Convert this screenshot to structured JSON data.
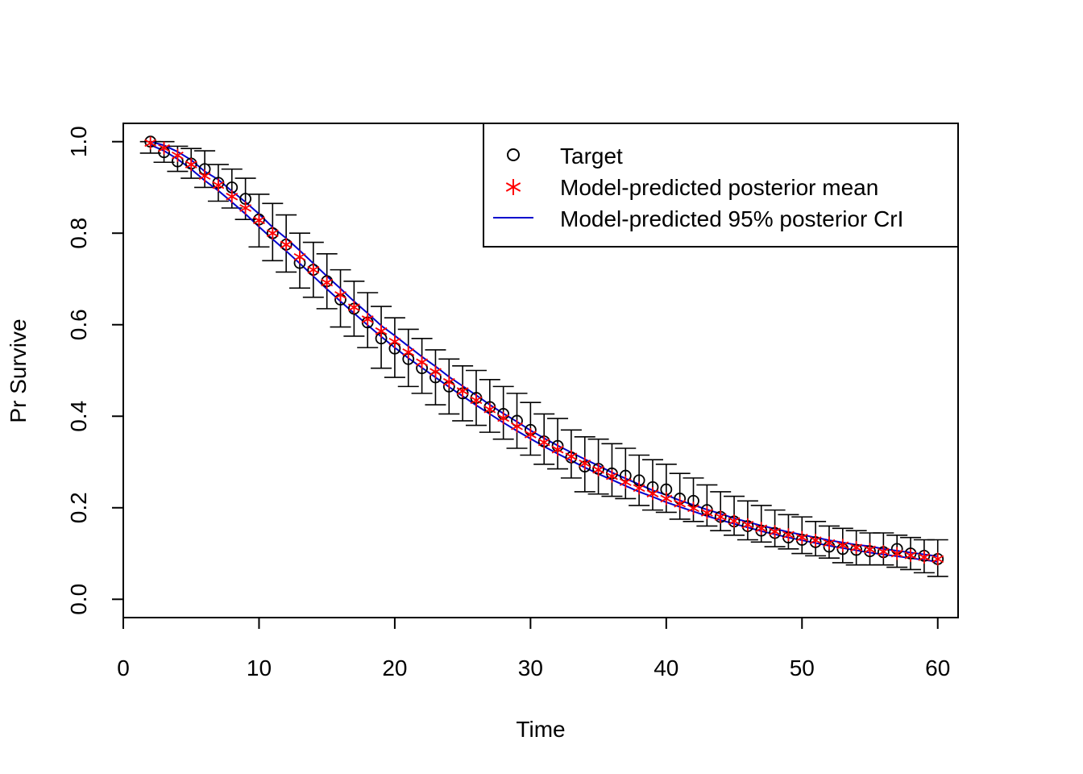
{
  "chart_data": {
    "type": "scatter",
    "title": "",
    "xlabel": "Time",
    "ylabel": "Pr Survive",
    "xlim": [
      0,
      61.5
    ],
    "ylim": [
      -0.04,
      1.04
    ],
    "x_ticks": [
      "0",
      "10",
      "20",
      "30",
      "40",
      "50",
      "60"
    ],
    "y_ticks": [
      "0.0",
      "0.2",
      "0.4",
      "0.6",
      "0.8",
      "1.0"
    ],
    "grid": false,
    "legend_position": "top-right",
    "legend": {
      "target": "Target",
      "mean": "Model-predicted posterior mean",
      "cri": "Model-predicted 95% posterior CrI"
    },
    "colors": {
      "target": "#000000",
      "mean": "#ff0000",
      "cri": "#0000cd"
    },
    "x": [
      2,
      3,
      4,
      5,
      6,
      7,
      8,
      9,
      10,
      11,
      12,
      13,
      14,
      15,
      16,
      17,
      18,
      19,
      20,
      21,
      22,
      23,
      24,
      25,
      26,
      27,
      28,
      29,
      30,
      31,
      32,
      33,
      34,
      35,
      36,
      37,
      38,
      39,
      40,
      41,
      42,
      43,
      44,
      45,
      46,
      47,
      48,
      49,
      50,
      51,
      52,
      53,
      54,
      55,
      56,
      57,
      58,
      59,
      60
    ],
    "series": [
      {
        "name": "Target",
        "values": [
          1.0,
          0.977,
          0.957,
          0.952,
          0.94,
          0.91,
          0.9,
          0.875,
          0.83,
          0.8,
          0.775,
          0.735,
          0.72,
          0.695,
          0.655,
          0.635,
          0.605,
          0.57,
          0.548,
          0.525,
          0.505,
          0.485,
          0.465,
          0.45,
          0.44,
          0.42,
          0.405,
          0.39,
          0.37,
          0.345,
          0.335,
          0.31,
          0.29,
          0.285,
          0.275,
          0.27,
          0.26,
          0.245,
          0.24,
          0.22,
          0.215,
          0.195,
          0.18,
          0.17,
          0.16,
          0.15,
          0.145,
          0.135,
          0.13,
          0.125,
          0.115,
          0.11,
          0.108,
          0.105,
          0.103,
          0.11,
          0.1,
          0.095,
          0.088
        ],
        "error_low": [
          0.975,
          0.955,
          0.935,
          0.92,
          0.9,
          0.87,
          0.855,
          0.83,
          0.77,
          0.74,
          0.715,
          0.68,
          0.66,
          0.635,
          0.595,
          0.575,
          0.55,
          0.505,
          0.485,
          0.465,
          0.45,
          0.425,
          0.405,
          0.39,
          0.38,
          0.365,
          0.35,
          0.33,
          0.315,
          0.295,
          0.285,
          0.265,
          0.235,
          0.23,
          0.225,
          0.22,
          0.205,
          0.195,
          0.19,
          0.175,
          0.17,
          0.16,
          0.15,
          0.14,
          0.13,
          0.125,
          0.115,
          0.11,
          0.1,
          0.095,
          0.09,
          0.08,
          0.075,
          0.075,
          0.075,
          0.07,
          0.065,
          0.058,
          0.05
        ],
        "error_high": [
          1.0,
          1.0,
          0.99,
          0.985,
          0.98,
          0.95,
          0.94,
          0.92,
          0.885,
          0.865,
          0.84,
          0.8,
          0.78,
          0.755,
          0.72,
          0.695,
          0.67,
          0.64,
          0.615,
          0.59,
          0.57,
          0.545,
          0.525,
          0.51,
          0.5,
          0.48,
          0.465,
          0.45,
          0.43,
          0.405,
          0.395,
          0.37,
          0.355,
          0.35,
          0.34,
          0.33,
          0.315,
          0.305,
          0.295,
          0.275,
          0.265,
          0.25,
          0.235,
          0.225,
          0.215,
          0.205,
          0.195,
          0.185,
          0.18,
          0.17,
          0.16,
          0.155,
          0.15,
          0.145,
          0.145,
          0.14,
          0.135,
          0.13,
          0.13
        ]
      },
      {
        "name": "Model-predicted posterior mean",
        "values": [
          0.997,
          0.986,
          0.97,
          0.95,
          0.925,
          0.905,
          0.88,
          0.855,
          0.828,
          0.8,
          0.775,
          0.748,
          0.72,
          0.692,
          0.665,
          0.638,
          0.612,
          0.586,
          0.563,
          0.54,
          0.518,
          0.497,
          0.475,
          0.455,
          0.435,
          0.415,
          0.396,
          0.378,
          0.36,
          0.343,
          0.327,
          0.312,
          0.297,
          0.283,
          0.269,
          0.256,
          0.243,
          0.231,
          0.22,
          0.209,
          0.199,
          0.189,
          0.18,
          0.171,
          0.163,
          0.155,
          0.148,
          0.141,
          0.135,
          0.129,
          0.123,
          0.118,
          0.113,
          0.109,
          0.104,
          0.1,
          0.096,
          0.092,
          0.088
        ]
      },
      {
        "name": "Model-predicted 95% posterior CrI",
        "lower": [
          0.993,
          0.98,
          0.962,
          0.94,
          0.915,
          0.893,
          0.868,
          0.842,
          0.814,
          0.787,
          0.761,
          0.734,
          0.706,
          0.678,
          0.651,
          0.625,
          0.599,
          0.574,
          0.55,
          0.527,
          0.506,
          0.485,
          0.464,
          0.444,
          0.424,
          0.405,
          0.386,
          0.368,
          0.351,
          0.334,
          0.318,
          0.303,
          0.288,
          0.274,
          0.261,
          0.248,
          0.235,
          0.224,
          0.212,
          0.202,
          0.192,
          0.182,
          0.173,
          0.165,
          0.157,
          0.149,
          0.142,
          0.135,
          0.129,
          0.123,
          0.117,
          0.112,
          0.107,
          0.102,
          0.098,
          0.094,
          0.09,
          0.086,
          0.082
        ],
        "upper": [
          1.0,
          0.992,
          0.978,
          0.96,
          0.935,
          0.917,
          0.892,
          0.868,
          0.842,
          0.813,
          0.789,
          0.762,
          0.734,
          0.706,
          0.679,
          0.651,
          0.625,
          0.598,
          0.576,
          0.553,
          0.53,
          0.509,
          0.486,
          0.466,
          0.446,
          0.425,
          0.406,
          0.388,
          0.369,
          0.352,
          0.336,
          0.321,
          0.306,
          0.292,
          0.277,
          0.264,
          0.251,
          0.238,
          0.228,
          0.216,
          0.206,
          0.196,
          0.187,
          0.177,
          0.169,
          0.161,
          0.154,
          0.147,
          0.141,
          0.135,
          0.129,
          0.124,
          0.119,
          0.116,
          0.11,
          0.106,
          0.102,
          0.098,
          0.094
        ]
      }
    ]
  }
}
